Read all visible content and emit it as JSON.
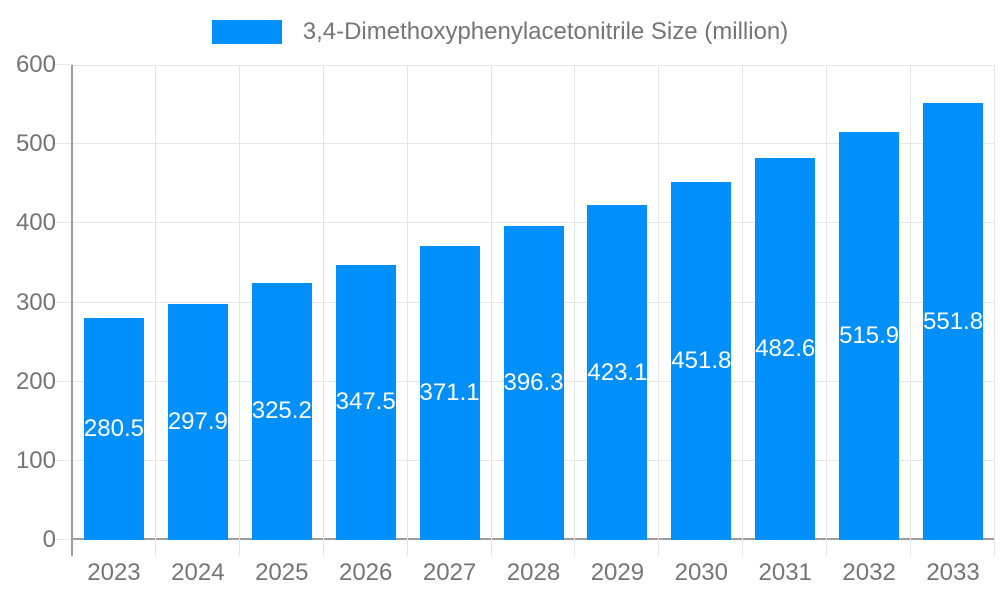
{
  "legend": {
    "label": "3,4-Dimethoxyphenylacetonitrile Size (million)"
  },
  "chart_data": {
    "type": "bar",
    "title": "",
    "legend_entries": [
      "3,4-Dimethoxyphenylacetonitrile Size (million)"
    ],
    "legend_position": "top-center",
    "categories": [
      "2023",
      "2024",
      "2025",
      "2026",
      "2027",
      "2028",
      "2029",
      "2030",
      "2031",
      "2032",
      "2033"
    ],
    "values": [
      280.5,
      297.9,
      325.2,
      347.5,
      371.1,
      396.3,
      423.1,
      451.8,
      482.6,
      515.9,
      551.8
    ],
    "xlabel": "",
    "ylabel": "",
    "ylim": [
      0,
      600
    ],
    "yticks": [
      0,
      100,
      200,
      300,
      400,
      500,
      600
    ],
    "grid": true,
    "value_labels": "inside-center",
    "colors": {
      "bar": "#008FFB",
      "grid": "#e6e6e6",
      "axis": "#9e9e9e",
      "tick": "#e6e6e6",
      "label_text": "#757575",
      "value_text": "#ffffff",
      "background": "#ffffff"
    }
  }
}
